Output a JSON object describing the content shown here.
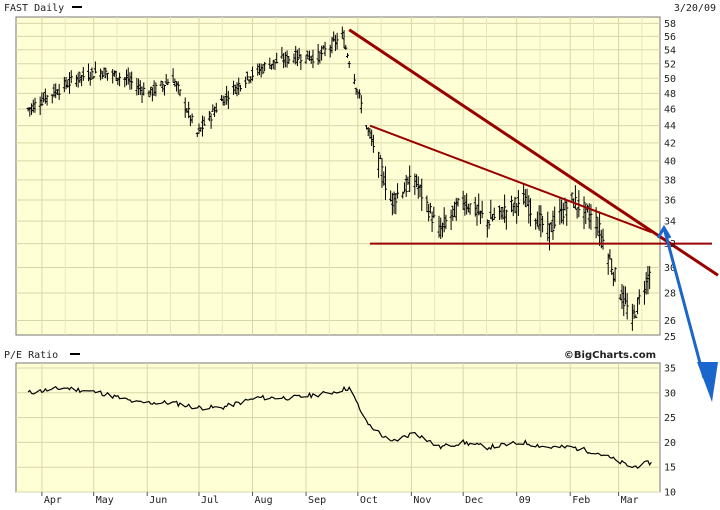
{
  "chart_data": [
    {
      "type": "ohlc",
      "header": {
        "ticker_label": "FAST Daily",
        "date": "3/20/09"
      },
      "watermark": "©BigCharts.com",
      "y_ticks": [
        26,
        28,
        30,
        32,
        34,
        36,
        38,
        40,
        42,
        44,
        46,
        48,
        50,
        52,
        54,
        56,
        58
      ],
      "y_tick_labels": [
        "26",
        "28",
        "30",
        "32",
        "34",
        "36",
        "38",
        "40",
        "42",
        "44",
        "46",
        "48",
        "50",
        "52",
        "54",
        "56",
        "58"
      ],
      "extra_y_label": "25",
      "y_scale": "log",
      "ylim": [
        25,
        59
      ],
      "grid": true,
      "approx_weekly_closes": [
        {
          "date": "2008-03-24",
          "close": 46
        },
        {
          "date": "2008-04-07",
          "close": 48
        },
        {
          "date": "2008-04-21",
          "close": 50
        },
        {
          "date": "2008-05-05",
          "close": 51
        },
        {
          "date": "2008-05-19",
          "close": 50
        },
        {
          "date": "2008-06-02",
          "close": 48
        },
        {
          "date": "2008-06-16",
          "close": 50
        },
        {
          "date": "2008-06-30",
          "close": 43
        },
        {
          "date": "2008-07-14",
          "close": 47
        },
        {
          "date": "2008-07-28",
          "close": 50
        },
        {
          "date": "2008-08-11",
          "close": 52
        },
        {
          "date": "2008-08-25",
          "close": 53
        },
        {
          "date": "2008-09-08",
          "close": 53
        },
        {
          "date": "2008-09-22",
          "close": 56
        },
        {
          "date": "2008-10-06",
          "close": 44
        },
        {
          "date": "2008-10-20",
          "close": 36
        },
        {
          "date": "2008-11-03",
          "close": 38
        },
        {
          "date": "2008-11-17",
          "close": 33
        },
        {
          "date": "2008-12-01",
          "close": 36
        },
        {
          "date": "2008-12-15",
          "close": 34
        },
        {
          "date": "2009-01-05",
          "close": 36
        },
        {
          "date": "2009-01-19",
          "close": 33
        },
        {
          "date": "2009-02-02",
          "close": 36
        },
        {
          "date": "2009-02-16",
          "close": 34
        },
        {
          "date": "2009-03-02",
          "close": 28
        },
        {
          "date": "2009-03-09",
          "close": 26
        },
        {
          "date": "2009-03-20",
          "close": 30
        }
      ],
      "trendlines": [
        {
          "from": {
            "date": "2008-09-26",
            "value": 57
          },
          "to": {
            "date": "2009-03-31",
            "value": 32
          },
          "color": "#990000"
        },
        {
          "from": {
            "date": "2008-10-08",
            "value": 44
          },
          "to": {
            "date": "2009-03-20",
            "value": 33
          },
          "color": "#990000"
        },
        {
          "from": {
            "date": "2008-10-08",
            "value": 32
          },
          "to": {
            "date": "2009-03-31",
            "value": 32
          },
          "color": "#990000"
        }
      ],
      "arrow": {
        "from": {
          "date": "2009-03-20",
          "value": 32.5
        },
        "direction": "down",
        "color": "#1a66cc"
      }
    },
    {
      "type": "line",
      "header": {
        "label": "P/E Ratio"
      },
      "y_ticks": [
        10,
        15,
        20,
        25,
        30,
        35
      ],
      "y_tick_labels": [
        "10",
        "15",
        "20",
        "25",
        "30",
        "35"
      ],
      "ylim": [
        10,
        36
      ],
      "grid": true,
      "x_tick_labels": [
        "Apr",
        "May",
        "Jun",
        "Jul",
        "Aug",
        "Sep",
        "Oct",
        "Nov",
        "Dec",
        "09",
        "Feb",
        "Mar"
      ],
      "approx_points": [
        {
          "date": "2008-03-24",
          "value": 30
        },
        {
          "date": "2008-04-14",
          "value": 31
        },
        {
          "date": "2008-05-05",
          "value": 30
        },
        {
          "date": "2008-05-26",
          "value": 28
        },
        {
          "date": "2008-06-16",
          "value": 28
        },
        {
          "date": "2008-06-30",
          "value": 27
        },
        {
          "date": "2008-07-14",
          "value": 27
        },
        {
          "date": "2008-08-04",
          "value": 29
        },
        {
          "date": "2008-08-25",
          "value": 29
        },
        {
          "date": "2008-09-15",
          "value": 30
        },
        {
          "date": "2008-09-26",
          "value": 31
        },
        {
          "date": "2008-10-06",
          "value": 24
        },
        {
          "date": "2008-10-20",
          "value": 20
        },
        {
          "date": "2008-11-03",
          "value": 22
        },
        {
          "date": "2008-11-17",
          "value": 19
        },
        {
          "date": "2008-12-01",
          "value": 20
        },
        {
          "date": "2008-12-15",
          "value": 19
        },
        {
          "date": "2009-01-05",
          "value": 20
        },
        {
          "date": "2009-01-19",
          "value": 19
        },
        {
          "date": "2009-02-02",
          "value": 19
        },
        {
          "date": "2009-02-16",
          "value": 18
        },
        {
          "date": "2009-03-02",
          "value": 16
        },
        {
          "date": "2009-03-09",
          "value": 15
        },
        {
          "date": "2009-03-20",
          "value": 16
        }
      ]
    }
  ]
}
